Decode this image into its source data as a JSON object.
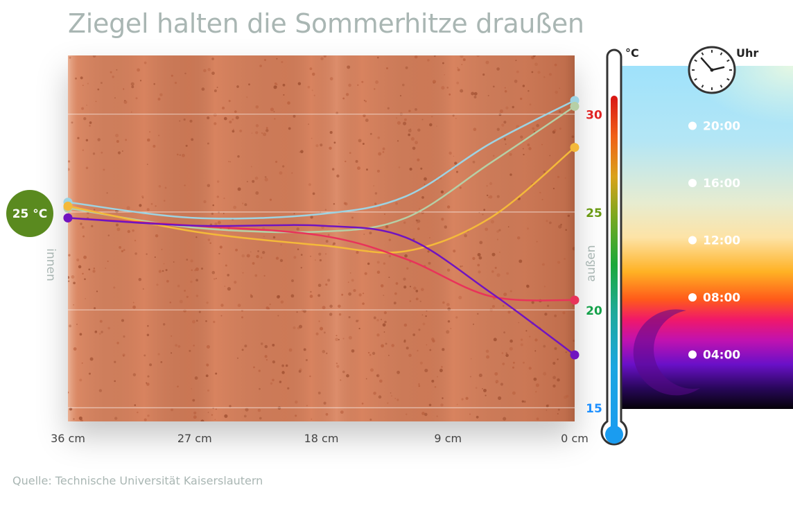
{
  "title": "Ziegel halten die Sommerhitze draußen",
  "source": "Quelle: Technische Universität Kaiserslautern",
  "inside_label": "innen",
  "outside_label": "außen",
  "badge_text": "25 °C",
  "thermometer_unit": "°C",
  "clock_label": "Uhr",
  "colors": {
    "brick": "#d8835e",
    "badge": "#5a8a1f",
    "axis_text": "#444444",
    "side_label": "#a9b6b3"
  },
  "chart_data": {
    "type": "line",
    "title": "Ziegel halten die Sommerhitze draußen",
    "xlabel": "",
    "ylabel": "°C",
    "x_unit": "cm",
    "x_categories": [
      "36 cm",
      "27 cm",
      "18 cm",
      "9 cm",
      "0 cm"
    ],
    "x_ticks": [
      36,
      27,
      18,
      9,
      0
    ],
    "xlim": [
      36,
      0
    ],
    "ylim": [
      14.3,
      33
    ],
    "y_ticks": [
      {
        "value": 30,
        "label": "30",
        "color": "#e02424"
      },
      {
        "value": 25,
        "label": "25",
        "color": "#6a9a12"
      },
      {
        "value": 20,
        "label": "20",
        "color": "#15a14a"
      },
      {
        "value": 15,
        "label": "15",
        "color": "#1e90ff"
      }
    ],
    "grid": true,
    "series": [
      {
        "color": "#9ed3e2",
        "points": [
          [
            36,
            25.5
          ],
          [
            27,
            24.7
          ],
          [
            18,
            24.9
          ],
          [
            12,
            25.8
          ],
          [
            6,
            28.5
          ],
          [
            0,
            30.7
          ]
        ]
      },
      {
        "color": "#b6cfa6",
        "points": [
          [
            36,
            25.2
          ],
          [
            27,
            24.2
          ],
          [
            18,
            24.0
          ],
          [
            12,
            24.7
          ],
          [
            6,
            27.5
          ],
          [
            0,
            30.4
          ]
        ]
      },
      {
        "color": "#f4b93a",
        "points": [
          [
            36,
            25.3
          ],
          [
            27,
            24.0
          ],
          [
            18,
            23.3
          ],
          [
            12,
            23.0
          ],
          [
            6,
            24.7
          ],
          [
            0,
            28.3
          ]
        ]
      },
      {
        "color": "#e8335a",
        "points": [
          [
            36,
            24.7
          ],
          [
            27,
            24.3
          ],
          [
            18,
            23.8
          ],
          [
            12,
            22.6
          ],
          [
            6,
            20.7
          ],
          [
            0,
            20.5
          ]
        ]
      },
      {
        "color": "#7014c0",
        "points": [
          [
            36,
            24.7
          ],
          [
            27,
            24.3
          ],
          [
            18,
            24.3
          ],
          [
            12,
            23.7
          ],
          [
            6,
            20.9
          ],
          [
            0,
            17.7
          ]
        ]
      }
    ]
  },
  "time_legend": [
    {
      "label": "20:00",
      "hour": 20
    },
    {
      "label": "16:00",
      "hour": 16
    },
    {
      "label": "12:00",
      "hour": 12
    },
    {
      "label": "08:00",
      "hour": 8
    },
    {
      "label": "04:00",
      "hour": 4
    }
  ]
}
